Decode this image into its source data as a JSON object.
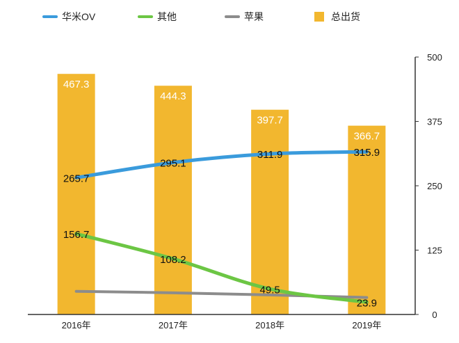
{
  "chart_data": {
    "type": "bar",
    "categories": [
      "2016年",
      "2017年",
      "2018年",
      "2019年"
    ],
    "ylim": [
      0,
      500
    ],
    "yticks": [
      0,
      125,
      250,
      375,
      500
    ],
    "y_axis_side": "right",
    "grid": false,
    "legend_position": "top",
    "bars": {
      "name": "总出货",
      "color": "#F2B72F",
      "values": [
        467.3,
        444.3,
        397.7,
        366.7
      ]
    },
    "series": [
      {
        "name": "华米OV",
        "color": "#3A9BDC",
        "values": [
          265.7,
          295.1,
          311.9,
          315.9
        ],
        "labels": [
          "265.7",
          "295.1",
          "311.9",
          "315.9"
        ]
      },
      {
        "name": "其他",
        "color": "#6CC644",
        "values": [
          156.7,
          108.2,
          49.5,
          23.9
        ],
        "labels": [
          "156.7",
          "108.2",
          "49.5",
          "23.9"
        ]
      },
      {
        "name": "苹果",
        "color": "#8C8C8C",
        "values": [
          45,
          42,
          38,
          33
        ]
      }
    ],
    "bar_labels": [
      "467.3",
      "444.3",
      "397.7",
      "366.7"
    ]
  }
}
